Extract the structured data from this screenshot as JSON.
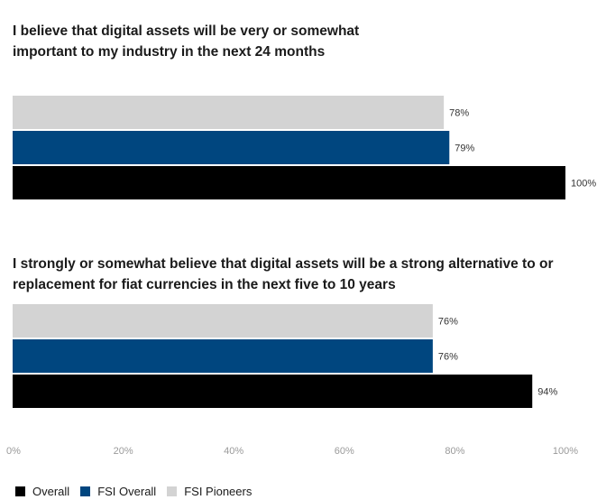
{
  "chart_data": {
    "type": "bar",
    "orientation": "horizontal",
    "xlim": [
      0,
      100
    ],
    "xticks": [
      "0%",
      "20%",
      "40%",
      "60%",
      "80%",
      "100%"
    ],
    "grid": false,
    "legend_position": "bottom-left",
    "groups": [
      {
        "title": "I believe that digital assets will be very or somewhat important to my industry in the next 24 months",
        "bars": [
          {
            "series": "FSI Pioneers",
            "value": 78,
            "label": "78%"
          },
          {
            "series": "FSI Overall",
            "value": 79,
            "label": "79%"
          },
          {
            "series": "Overall",
            "value": 100,
            "label": "100%"
          }
        ]
      },
      {
        "title": "I strongly or somewhat believe that digital assets will be a strong alternative to or replacement for fiat currencies in the next five to 10 years",
        "bars": [
          {
            "series": "FSI Pioneers",
            "value": 76,
            "label": "76%"
          },
          {
            "series": "FSI Overall",
            "value": 76,
            "label": "76%"
          },
          {
            "series": "Overall",
            "value": 94,
            "label": "94%"
          }
        ]
      }
    ],
    "series": [
      {
        "name": "Overall",
        "color": "#000000"
      },
      {
        "name": "FSI Overall",
        "color": "#00467f"
      },
      {
        "name": "FSI Pioneers",
        "color": "#d3d3d3"
      }
    ]
  }
}
